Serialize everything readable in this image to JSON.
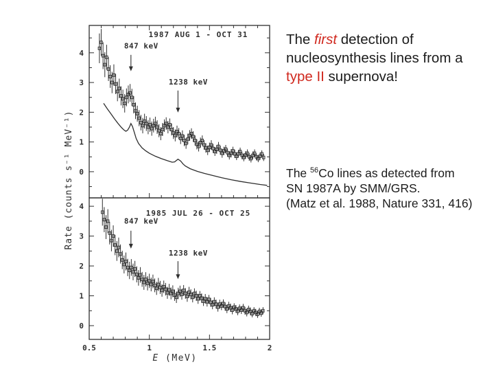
{
  "slide": {
    "background": "#ffffff"
  },
  "colors": {
    "accent_red": "#d0281e",
    "figure_ink": "#2e2e2e",
    "text_black": "#1c1c1c"
  },
  "headline": {
    "l1a": "The ",
    "l1b": "first",
    "l1c": " detection of",
    "l2": "nucleosynthesis lines from a",
    "l3a": "type II",
    "l3b": " supernova!"
  },
  "caption": {
    "l1a": "The ",
    "l1sup": "56",
    "l1b": "Co lines as detected from",
    "l2": "SN 1987A by SMM/GRS.",
    "l3": "(Matz et al. 1988, Nature 331, 416)"
  },
  "chart_data": {
    "type": "scatter",
    "xlabel": "E (MeV)",
    "ylabel": "Rate (counts s⁻¹ MeV⁻¹)",
    "xlim": [
      0.5,
      2.0
    ],
    "x_ticks": [
      0.5,
      1,
      1.5,
      2
    ],
    "x_tick_labels": [
      "0.5",
      "1",
      "1.5",
      "2"
    ],
    "grid": false,
    "panels": [
      {
        "title": "1987 AUG 1 - OCT 31",
        "ylim": [
          -0.88,
          4.92
        ],
        "y_ticks": [
          0,
          1,
          2,
          3,
          4
        ],
        "annotations": [
          {
            "label": "847 keV",
            "x": 0.847,
            "label_y": 4.15,
            "arrow_from": 3.93,
            "arrow_to": 3.38
          },
          {
            "label": "1238 keV",
            "x": 1.238,
            "label_y": 2.93,
            "arrow_from": 2.73,
            "arrow_to": 1.99
          }
        ],
        "points": [
          [
            0.585,
            4.15,
            0.5
          ],
          [
            0.6,
            4.35,
            0.45
          ],
          [
            0.615,
            3.9,
            0.45
          ],
          [
            0.63,
            3.6,
            0.42
          ],
          [
            0.645,
            3.85,
            0.42
          ],
          [
            0.66,
            3.45,
            0.4
          ],
          [
            0.675,
            3.2,
            0.38
          ],
          [
            0.69,
            3.0,
            0.36
          ],
          [
            0.705,
            3.25,
            0.36
          ],
          [
            0.72,
            2.95,
            0.34
          ],
          [
            0.735,
            2.7,
            0.33
          ],
          [
            0.75,
            2.8,
            0.33
          ],
          [
            0.765,
            2.55,
            0.32
          ],
          [
            0.78,
            2.45,
            0.31
          ],
          [
            0.795,
            2.3,
            0.31
          ],
          [
            0.81,
            2.5,
            0.3
          ],
          [
            0.825,
            2.6,
            0.3
          ],
          [
            0.84,
            2.65,
            0.3
          ],
          [
            0.855,
            2.5,
            0.29
          ],
          [
            0.87,
            2.25,
            0.29
          ],
          [
            0.885,
            2.05,
            0.28
          ],
          [
            0.9,
            1.95,
            0.27
          ],
          [
            0.915,
            1.8,
            0.27
          ],
          [
            0.93,
            1.65,
            0.26
          ],
          [
            0.945,
            1.55,
            0.26
          ],
          [
            0.96,
            1.7,
            0.25
          ],
          [
            0.975,
            1.62,
            0.25
          ],
          [
            0.99,
            1.5,
            0.24
          ],
          [
            1.005,
            1.58,
            0.24
          ],
          [
            1.02,
            1.45,
            0.24
          ],
          [
            1.035,
            1.55,
            0.23
          ],
          [
            1.05,
            1.62,
            0.23
          ],
          [
            1.065,
            1.5,
            0.23
          ],
          [
            1.08,
            1.38,
            0.22
          ],
          [
            1.095,
            1.28,
            0.22
          ],
          [
            1.11,
            1.42,
            0.22
          ],
          [
            1.125,
            1.55,
            0.21
          ],
          [
            1.14,
            1.62,
            0.21
          ],
          [
            1.155,
            1.5,
            0.21
          ],
          [
            1.17,
            1.58,
            0.21
          ],
          [
            1.185,
            1.42,
            0.2
          ],
          [
            1.2,
            1.3,
            0.2
          ],
          [
            1.215,
            1.22,
            0.2
          ],
          [
            1.23,
            1.35,
            0.2
          ],
          [
            1.245,
            1.28,
            0.19
          ],
          [
            1.26,
            1.12,
            0.19
          ],
          [
            1.275,
            1.2,
            0.19
          ],
          [
            1.29,
            1.05,
            0.19
          ],
          [
            1.305,
            0.95,
            0.18
          ],
          [
            1.32,
            1.1,
            0.18
          ],
          [
            1.335,
            1.22,
            0.18
          ],
          [
            1.35,
            1.28,
            0.18
          ],
          [
            1.365,
            1.18,
            0.18
          ],
          [
            1.38,
            1.05,
            0.17
          ],
          [
            1.395,
            0.92,
            0.17
          ],
          [
            1.41,
            0.85,
            0.17
          ],
          [
            1.425,
            0.98,
            0.17
          ],
          [
            1.44,
            1.05,
            0.17
          ],
          [
            1.455,
            0.9,
            0.16
          ],
          [
            1.47,
            0.8,
            0.16
          ],
          [
            1.485,
            0.72,
            0.16
          ],
          [
            1.5,
            0.82,
            0.16
          ],
          [
            1.515,
            0.9,
            0.16
          ],
          [
            1.53,
            0.78,
            0.15
          ],
          [
            1.545,
            0.68,
            0.15
          ],
          [
            1.56,
            0.75,
            0.15
          ],
          [
            1.575,
            0.85,
            0.15
          ],
          [
            1.59,
            0.72,
            0.15
          ],
          [
            1.605,
            0.62,
            0.15
          ],
          [
            1.62,
            0.7,
            0.14
          ],
          [
            1.635,
            0.76,
            0.14
          ],
          [
            1.65,
            0.64,
            0.14
          ],
          [
            1.665,
            0.55,
            0.14
          ],
          [
            1.68,
            0.62,
            0.14
          ],
          [
            1.695,
            0.7,
            0.14
          ],
          [
            1.71,
            0.6,
            0.14
          ],
          [
            1.725,
            0.52,
            0.13
          ],
          [
            1.74,
            0.6,
            0.13
          ],
          [
            1.755,
            0.68,
            0.13
          ],
          [
            1.77,
            0.55,
            0.13
          ],
          [
            1.785,
            0.48,
            0.13
          ],
          [
            1.8,
            0.56,
            0.13
          ],
          [
            1.815,
            0.62,
            0.13
          ],
          [
            1.83,
            0.5,
            0.13
          ],
          [
            1.845,
            0.44,
            0.13
          ],
          [
            1.86,
            0.55,
            0.13
          ],
          [
            1.875,
            0.62,
            0.13
          ],
          [
            1.89,
            0.5,
            0.12
          ],
          [
            1.905,
            0.44,
            0.12
          ],
          [
            1.92,
            0.52,
            0.12
          ],
          [
            1.935,
            0.6,
            0.12
          ],
          [
            1.95,
            0.48,
            0.12
          ]
        ],
        "model_curve": [
          [
            0.62,
            2.3
          ],
          [
            0.65,
            2.12
          ],
          [
            0.68,
            1.95
          ],
          [
            0.71,
            1.78
          ],
          [
            0.74,
            1.62
          ],
          [
            0.77,
            1.48
          ],
          [
            0.79,
            1.4
          ],
          [
            0.805,
            1.36
          ],
          [
            0.82,
            1.4
          ],
          [
            0.835,
            1.5
          ],
          [
            0.847,
            1.62
          ],
          [
            0.86,
            1.52
          ],
          [
            0.875,
            1.32
          ],
          [
            0.89,
            1.12
          ],
          [
            0.91,
            0.95
          ],
          [
            0.94,
            0.8
          ],
          [
            0.97,
            0.7
          ],
          [
            1.0,
            0.62
          ],
          [
            1.05,
            0.52
          ],
          [
            1.1,
            0.44
          ],
          [
            1.15,
            0.37
          ],
          [
            1.19,
            0.32
          ],
          [
            1.21,
            0.33
          ],
          [
            1.238,
            0.42
          ],
          [
            1.26,
            0.36
          ],
          [
            1.28,
            0.26
          ],
          [
            1.3,
            0.19
          ],
          [
            1.34,
            0.1
          ],
          [
            1.4,
            0.01
          ],
          [
            1.46,
            -0.06
          ],
          [
            1.52,
            -0.12
          ],
          [
            1.6,
            -0.2
          ],
          [
            1.68,
            -0.27
          ],
          [
            1.76,
            -0.33
          ],
          [
            1.84,
            -0.38
          ],
          [
            1.92,
            -0.43
          ],
          [
            1.98,
            -0.46
          ]
        ]
      },
      {
        "title": "1985 JUL 26 - OCT 25",
        "ylim": [
          -0.46,
          4.28
        ],
        "y_ticks": [
          0,
          1,
          2,
          3,
          4
        ],
        "annotations": [
          {
            "label": "847 keV",
            "x": 0.847,
            "label_y": 3.42,
            "arrow_from": 3.18,
            "arrow_to": 2.58
          },
          {
            "label": "1238 keV",
            "x": 1.238,
            "label_y": 2.35,
            "arrow_from": 2.16,
            "arrow_to": 1.56
          }
        ],
        "points": [
          [
            0.61,
            3.8,
            0.45
          ],
          [
            0.625,
            3.55,
            0.42
          ],
          [
            0.64,
            3.3,
            0.4
          ],
          [
            0.655,
            3.5,
            0.4
          ],
          [
            0.67,
            3.1,
            0.38
          ],
          [
            0.685,
            2.85,
            0.36
          ],
          [
            0.7,
            3.0,
            0.36
          ],
          [
            0.715,
            2.7,
            0.34
          ],
          [
            0.73,
            2.5,
            0.33
          ],
          [
            0.745,
            2.62,
            0.33
          ],
          [
            0.76,
            2.4,
            0.32
          ],
          [
            0.775,
            2.2,
            0.31
          ],
          [
            0.79,
            2.05,
            0.3
          ],
          [
            0.805,
            2.15,
            0.3
          ],
          [
            0.82,
            1.95,
            0.29
          ],
          [
            0.835,
            1.85,
            0.29
          ],
          [
            0.85,
            1.95,
            0.28
          ],
          [
            0.865,
            1.8,
            0.28
          ],
          [
            0.88,
            1.9,
            0.27
          ],
          [
            0.895,
            1.72,
            0.27
          ],
          [
            0.91,
            1.6,
            0.26
          ],
          [
            0.925,
            1.7,
            0.26
          ],
          [
            0.94,
            1.55,
            0.25
          ],
          [
            0.955,
            1.45,
            0.25
          ],
          [
            0.97,
            1.55,
            0.24
          ],
          [
            0.985,
            1.42,
            0.24
          ],
          [
            1.0,
            1.5,
            0.24
          ],
          [
            1.015,
            1.38,
            0.23
          ],
          [
            1.03,
            1.48,
            0.23
          ],
          [
            1.045,
            1.35,
            0.23
          ],
          [
            1.06,
            1.25,
            0.22
          ],
          [
            1.075,
            1.38,
            0.22
          ],
          [
            1.09,
            1.28,
            0.22
          ],
          [
            1.105,
            1.18,
            0.21
          ],
          [
            1.12,
            1.3,
            0.21
          ],
          [
            1.135,
            1.22,
            0.21
          ],
          [
            1.15,
            1.1,
            0.2
          ],
          [
            1.165,
            1.2,
            0.2
          ],
          [
            1.18,
            1.08,
            0.2
          ],
          [
            1.195,
            1.15,
            0.2
          ],
          [
            1.21,
            1.02,
            0.19
          ],
          [
            1.225,
            0.95,
            0.19
          ],
          [
            1.24,
            1.08,
            0.19
          ],
          [
            1.255,
            1.15,
            0.19
          ],
          [
            1.27,
            1.05,
            0.18
          ],
          [
            1.285,
            1.18,
            0.18
          ],
          [
            1.3,
            1.08,
            0.18
          ],
          [
            1.315,
            0.98,
            0.18
          ],
          [
            1.33,
            1.12,
            0.18
          ],
          [
            1.345,
            1.05,
            0.17
          ],
          [
            1.36,
            0.95,
            0.17
          ],
          [
            1.375,
            1.08,
            0.17
          ],
          [
            1.39,
            1.0,
            0.17
          ],
          [
            1.405,
            0.9,
            0.17
          ],
          [
            1.42,
            1.0,
            0.16
          ],
          [
            1.435,
            0.92,
            0.16
          ],
          [
            1.45,
            0.82,
            0.16
          ],
          [
            1.465,
            0.9,
            0.16
          ],
          [
            1.48,
            0.8,
            0.16
          ],
          [
            1.495,
            0.88,
            0.15
          ],
          [
            1.51,
            0.78,
            0.15
          ],
          [
            1.525,
            0.7,
            0.15
          ],
          [
            1.54,
            0.8,
            0.15
          ],
          [
            1.555,
            0.72,
            0.15
          ],
          [
            1.57,
            0.62,
            0.15
          ],
          [
            1.585,
            0.72,
            0.15
          ],
          [
            1.6,
            0.66,
            0.14
          ],
          [
            1.615,
            0.74,
            0.14
          ],
          [
            1.63,
            0.64,
            0.14
          ],
          [
            1.645,
            0.56,
            0.14
          ],
          [
            1.66,
            0.66,
            0.14
          ],
          [
            1.675,
            0.6,
            0.14
          ],
          [
            1.69,
            0.52,
            0.14
          ],
          [
            1.705,
            0.62,
            0.13
          ],
          [
            1.72,
            0.56,
            0.13
          ],
          [
            1.735,
            0.48,
            0.13
          ],
          [
            1.75,
            0.58,
            0.13
          ],
          [
            1.765,
            0.52,
            0.13
          ],
          [
            1.78,
            0.6,
            0.13
          ],
          [
            1.795,
            0.5,
            0.13
          ],
          [
            1.81,
            0.44,
            0.13
          ],
          [
            1.825,
            0.54,
            0.13
          ],
          [
            1.84,
            0.48,
            0.13
          ],
          [
            1.855,
            0.4,
            0.12
          ],
          [
            1.87,
            0.5,
            0.12
          ],
          [
            1.885,
            0.44,
            0.12
          ],
          [
            1.9,
            0.38,
            0.12
          ],
          [
            1.915,
            0.48,
            0.12
          ],
          [
            1.93,
            0.42,
            0.12
          ],
          [
            1.945,
            0.5,
            0.12
          ]
        ]
      }
    ]
  }
}
